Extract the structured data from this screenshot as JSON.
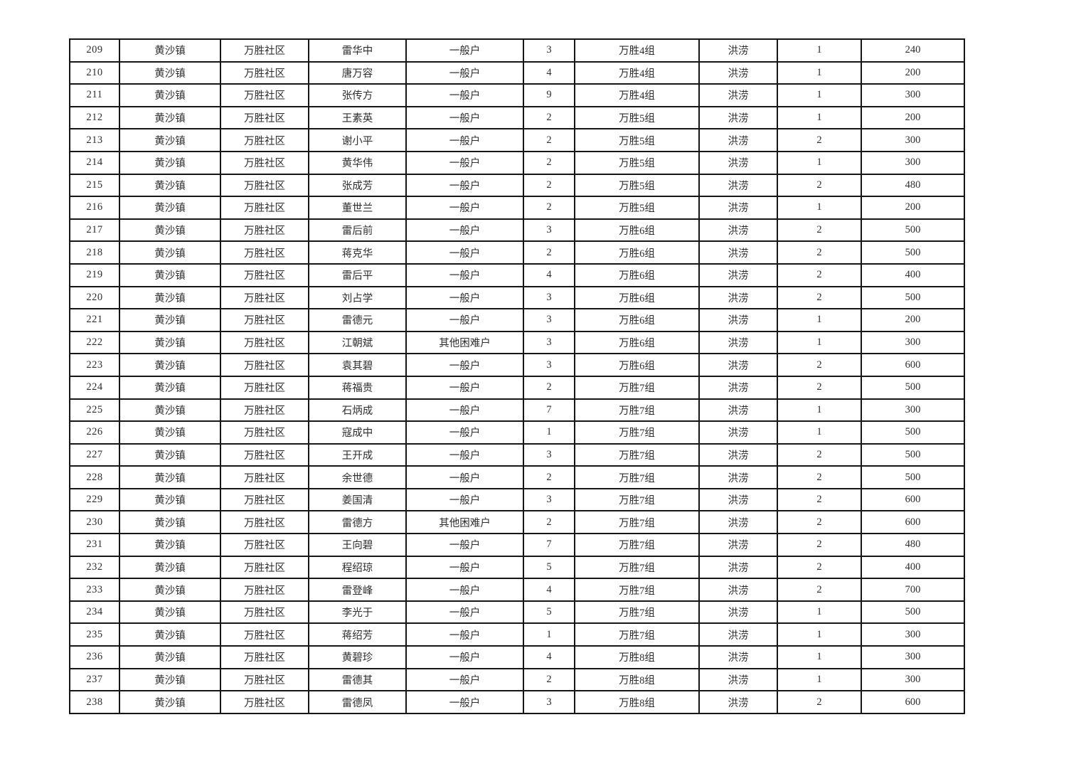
{
  "table": {
    "disaster_label": "洪涝",
    "rows": [
      {
        "no": "209",
        "town": "黄沙镇",
        "community": "万胜社区",
        "name": "雷华中",
        "household_type": "一般户",
        "people_count": "3",
        "group": "万胜4组",
        "disaster_type": "洪涝",
        "times": "1",
        "amount": "240"
      },
      {
        "no": "210",
        "town": "黄沙镇",
        "community": "万胜社区",
        "name": "唐万容",
        "household_type": "一般户",
        "people_count": "4",
        "group": "万胜4组",
        "disaster_type": "洪涝",
        "times": "1",
        "amount": "200"
      },
      {
        "no": "211",
        "town": "黄沙镇",
        "community": "万胜社区",
        "name": "张传方",
        "household_type": "一般户",
        "people_count": "9",
        "group": "万胜4组",
        "disaster_type": "洪涝",
        "times": "1",
        "amount": "300"
      },
      {
        "no": "212",
        "town": "黄沙镇",
        "community": "万胜社区",
        "name": "王素英",
        "household_type": "一般户",
        "people_count": "2",
        "group": "万胜5组",
        "disaster_type": "洪涝",
        "times": "1",
        "amount": "200"
      },
      {
        "no": "213",
        "town": "黄沙镇",
        "community": "万胜社区",
        "name": "谢小平",
        "household_type": "一般户",
        "people_count": "2",
        "group": "万胜5组",
        "disaster_type": "洪涝",
        "times": "2",
        "amount": "300"
      },
      {
        "no": "214",
        "town": "黄沙镇",
        "community": "万胜社区",
        "name": "黄华伟",
        "household_type": "一般户",
        "people_count": "2",
        "group": "万胜5组",
        "disaster_type": "洪涝",
        "times": "1",
        "amount": "300"
      },
      {
        "no": "215",
        "town": "黄沙镇",
        "community": "万胜社区",
        "name": "张成芳",
        "household_type": "一般户",
        "people_count": "2",
        "group": "万胜5组",
        "disaster_type": "洪涝",
        "times": "2",
        "amount": "480"
      },
      {
        "no": "216",
        "town": "黄沙镇",
        "community": "万胜社区",
        "name": "董世兰",
        "household_type": "一般户",
        "people_count": "2",
        "group": "万胜5组",
        "disaster_type": "洪涝",
        "times": "1",
        "amount": "200"
      },
      {
        "no": "217",
        "town": "黄沙镇",
        "community": "万胜社区",
        "name": "雷后前",
        "household_type": "一般户",
        "people_count": "3",
        "group": "万胜6组",
        "disaster_type": "洪涝",
        "times": "2",
        "amount": "500"
      },
      {
        "no": "218",
        "town": "黄沙镇",
        "community": "万胜社区",
        "name": "蒋克华",
        "household_type": "一般户",
        "people_count": "2",
        "group": "万胜6组",
        "disaster_type": "洪涝",
        "times": "2",
        "amount": "500"
      },
      {
        "no": "219",
        "town": "黄沙镇",
        "community": "万胜社区",
        "name": "雷后平",
        "household_type": "一般户",
        "people_count": "4",
        "group": "万胜6组",
        "disaster_type": "洪涝",
        "times": "2",
        "amount": "400"
      },
      {
        "no": "220",
        "town": "黄沙镇",
        "community": "万胜社区",
        "name": "刘占学",
        "household_type": "一般户",
        "people_count": "3",
        "group": "万胜6组",
        "disaster_type": "洪涝",
        "times": "2",
        "amount": "500"
      },
      {
        "no": "221",
        "town": "黄沙镇",
        "community": "万胜社区",
        "name": "雷德元",
        "household_type": "一般户",
        "people_count": "3",
        "group": "万胜6组",
        "disaster_type": "洪涝",
        "times": "1",
        "amount": "200"
      },
      {
        "no": "222",
        "town": "黄沙镇",
        "community": "万胜社区",
        "name": "江朝斌",
        "household_type": "其他困难户",
        "people_count": "3",
        "group": "万胜6组",
        "disaster_type": "洪涝",
        "times": "1",
        "amount": "300"
      },
      {
        "no": "223",
        "town": "黄沙镇",
        "community": "万胜社区",
        "name": "袁其碧",
        "household_type": "一般户",
        "people_count": "3",
        "group": "万胜6组",
        "disaster_type": "洪涝",
        "times": "2",
        "amount": "600"
      },
      {
        "no": "224",
        "town": "黄沙镇",
        "community": "万胜社区",
        "name": "蒋福贵",
        "household_type": "一般户",
        "people_count": "2",
        "group": "万胜7组",
        "disaster_type": "洪涝",
        "times": "2",
        "amount": "500"
      },
      {
        "no": "225",
        "town": "黄沙镇",
        "community": "万胜社区",
        "name": "石炳成",
        "household_type": "一般户",
        "people_count": "7",
        "group": "万胜7组",
        "disaster_type": "洪涝",
        "times": "1",
        "amount": "300"
      },
      {
        "no": "226",
        "town": "黄沙镇",
        "community": "万胜社区",
        "name": "寇成中",
        "household_type": "一般户",
        "people_count": "1",
        "group": "万胜7组",
        "disaster_type": "洪涝",
        "times": "1",
        "amount": "500"
      },
      {
        "no": "227",
        "town": "黄沙镇",
        "community": "万胜社区",
        "name": "王开成",
        "household_type": "一般户",
        "people_count": "3",
        "group": "万胜7组",
        "disaster_type": "洪涝",
        "times": "2",
        "amount": "500"
      },
      {
        "no": "228",
        "town": "黄沙镇",
        "community": "万胜社区",
        "name": "余世德",
        "household_type": "一般户",
        "people_count": "2",
        "group": "万胜7组",
        "disaster_type": "洪涝",
        "times": "2",
        "amount": "500"
      },
      {
        "no": "229",
        "town": "黄沙镇",
        "community": "万胜社区",
        "name": "姜国清",
        "household_type": "一般户",
        "people_count": "3",
        "group": "万胜7组",
        "disaster_type": "洪涝",
        "times": "2",
        "amount": "600"
      },
      {
        "no": "230",
        "town": "黄沙镇",
        "community": "万胜社区",
        "name": "雷德方",
        "household_type": "其他困难户",
        "people_count": "2",
        "group": "万胜7组",
        "disaster_type": "洪涝",
        "times": "2",
        "amount": "600"
      },
      {
        "no": "231",
        "town": "黄沙镇",
        "community": "万胜社区",
        "name": "王向碧",
        "household_type": "一般户",
        "people_count": "7",
        "group": "万胜7组",
        "disaster_type": "洪涝",
        "times": "2",
        "amount": "480"
      },
      {
        "no": "232",
        "town": "黄沙镇",
        "community": "万胜社区",
        "name": "程绍琼",
        "household_type": "一般户",
        "people_count": "5",
        "group": "万胜7组",
        "disaster_type": "洪涝",
        "times": "2",
        "amount": "400"
      },
      {
        "no": "233",
        "town": "黄沙镇",
        "community": "万胜社区",
        "name": "雷登峰",
        "household_type": "一般户",
        "people_count": "4",
        "group": "万胜7组",
        "disaster_type": "洪涝",
        "times": "2",
        "amount": "700"
      },
      {
        "no": "234",
        "town": "黄沙镇",
        "community": "万胜社区",
        "name": "李光于",
        "household_type": "一般户",
        "people_count": "5",
        "group": "万胜7组",
        "disaster_type": "洪涝",
        "times": "1",
        "amount": "500"
      },
      {
        "no": "235",
        "town": "黄沙镇",
        "community": "万胜社区",
        "name": "蒋绍芳",
        "household_type": "一般户",
        "people_count": "1",
        "group": "万胜7组",
        "disaster_type": "洪涝",
        "times": "1",
        "amount": "300"
      },
      {
        "no": "236",
        "town": "黄沙镇",
        "community": "万胜社区",
        "name": "黄碧珍",
        "household_type": "一般户",
        "people_count": "4",
        "group": "万胜8组",
        "disaster_type": "洪涝",
        "times": "1",
        "amount": "300"
      },
      {
        "no": "237",
        "town": "黄沙镇",
        "community": "万胜社区",
        "name": "雷德其",
        "household_type": "一般户",
        "people_count": "2",
        "group": "万胜8组",
        "disaster_type": "洪涝",
        "times": "1",
        "amount": "300"
      },
      {
        "no": "238",
        "town": "黄沙镇",
        "community": "万胜社区",
        "name": "雷德凤",
        "household_type": "一般户",
        "people_count": "3",
        "group": "万胜8组",
        "disaster_type": "洪涝",
        "times": "2",
        "amount": "600"
      }
    ]
  }
}
